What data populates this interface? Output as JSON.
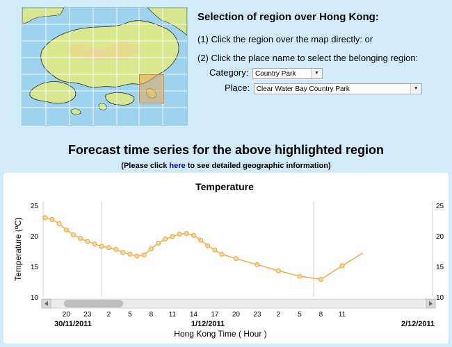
{
  "selection": {
    "title": "Selection of region over Hong Kong:",
    "step1": "(1) Click the region over the map directly: or",
    "step2": "(2) Click the place name to select the belonging region:",
    "category_label": "Category:",
    "category_value": "Country Park",
    "place_label": "Place:",
    "place_value": "Clear Water Bay Country Park"
  },
  "forecast": {
    "title": "Forecast time series for the above highlighted region",
    "note_prefix": "(Please click ",
    "note_link": "here",
    "note_suffix": " to see detailed geographic information)"
  },
  "colors": {
    "series": "#f0a030",
    "page_bg": "#d2ebfa"
  },
  "chart_data": {
    "type": "line",
    "title": "Temperature",
    "xlabel": "Hong Kong Time ( Hour )",
    "ylabel": "Temperature (ºC)",
    "ylim": [
      10,
      25
    ],
    "y_ticks": [
      "10",
      "15",
      "20",
      "25"
    ],
    "x_tick_labels": [
      "20",
      "23",
      "2",
      "5",
      "8",
      "11",
      "14",
      "17",
      "20",
      "23",
      "2",
      "5",
      "8",
      "11"
    ],
    "date_labels": [
      "30/11/2011",
      "1/12/2011",
      "2/12/2011"
    ],
    "grid": false,
    "series": [
      {
        "points_x_hours_from_start": [
          -1,
          0,
          1,
          2,
          3,
          4,
          5,
          6,
          7,
          8,
          9,
          10,
          11,
          12,
          13,
          14,
          15,
          16,
          17,
          18,
          19,
          20,
          21,
          22,
          23,
          24,
          26,
          29,
          32,
          35,
          38,
          41
        ],
        "values": [
          23,
          22.7,
          22,
          21,
          20.2,
          19.6,
          19.1,
          18.7,
          18.3,
          18.1,
          17.8,
          17.3,
          17,
          16.7,
          16.9,
          17.9,
          18.8,
          19.5,
          19.9,
          20.3,
          20.4,
          20.1,
          19.3,
          18.4,
          17.7,
          17,
          16.3,
          15.3,
          14.3,
          13.4,
          12.9,
          15.1
        ]
      }
    ]
  }
}
